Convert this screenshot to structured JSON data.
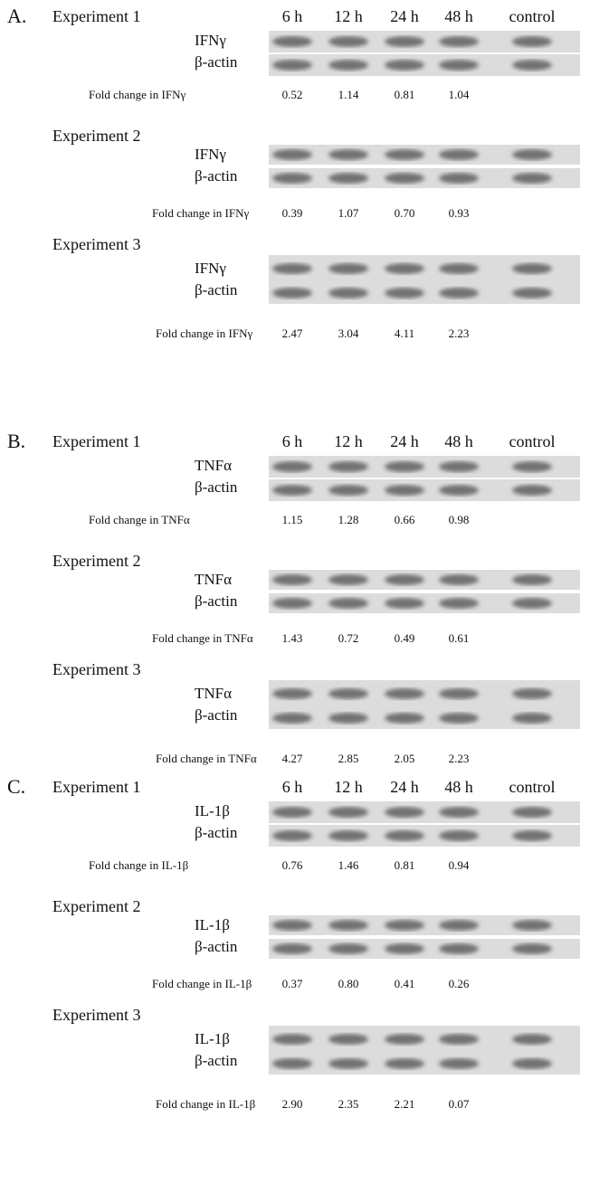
{
  "panels": [
    {
      "label": "A.",
      "times": [
        "6 h",
        "12 h",
        "24 h",
        "48 h",
        "control"
      ],
      "experiments": [
        {
          "name": "Experiment 1",
          "target": "IFNγ",
          "reference": "β-actin",
          "fold_label": "Fold change in IFNγ",
          "values": [
            "0.52",
            "1.14",
            "0.81",
            "1.04"
          ]
        },
        {
          "name": "Experiment 2",
          "target": "IFNγ",
          "reference": "β-actin",
          "fold_label": "Fold change in IFNγ",
          "values": [
            "0.39",
            "1.07",
            "0.70",
            "0.93"
          ]
        },
        {
          "name": "Experiment 3",
          "target": "IFNγ",
          "reference": "β-actin",
          "fold_label": "Fold change in IFNγ",
          "values": [
            "2.47",
            "3.04",
            "4.11",
            "2.23"
          ]
        }
      ]
    },
    {
      "label": "B.",
      "times": [
        "6 h",
        "12 h",
        "24 h",
        "48 h",
        "control"
      ],
      "experiments": [
        {
          "name": "Experiment 1",
          "target": "TNFα",
          "reference": "β-actin",
          "fold_label": "Fold change in TNFα",
          "values": [
            "1.15",
            "1.28",
            "0.66",
            "0.98"
          ]
        },
        {
          "name": "Experiment 2",
          "target": "TNFα",
          "reference": "β-actin",
          "fold_label": "Fold change in TNFα",
          "values": [
            "1.43",
            "0.72",
            "0.49",
            "0.61"
          ]
        },
        {
          "name": "Experiment 3",
          "target": "TNFα",
          "reference": "β-actin",
          "fold_label": "Fold change in TNFα",
          "values": [
            "4.27",
            "2.85",
            "2.05",
            "2.23"
          ]
        }
      ]
    },
    {
      "label": "C.",
      "times": [
        "6 h",
        "12 h",
        "24 h",
        "48 h",
        "control"
      ],
      "experiments": [
        {
          "name": "Experiment 1",
          "target": "IL-1β",
          "reference": "β-actin",
          "fold_label": "Fold change in IL-1β",
          "values": [
            "0.76",
            "1.46",
            "0.81",
            "0.94"
          ]
        },
        {
          "name": "Experiment 2",
          "target": "IL-1β",
          "reference": "β-actin",
          "fold_label": "Fold change in IL-1β",
          "values": [
            "0.37",
            "0.80",
            "0.41",
            "0.26"
          ]
        },
        {
          "name": "Experiment 3",
          "target": "IL-1β",
          "reference": "β-actin",
          "fold_label": "Fold change in IL-1β",
          "values": [
            "2.90",
            "2.35",
            "2.21",
            "0.07"
          ]
        }
      ]
    }
  ]
}
